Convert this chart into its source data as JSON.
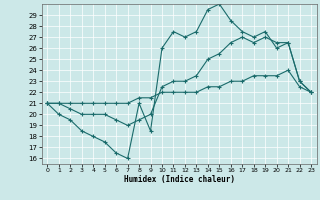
{
  "xlabel": "Humidex (Indice chaleur)",
  "bg_color": "#cce8e8",
  "line_color": "#1a6b6b",
  "xlim": [
    -0.5,
    23.5
  ],
  "ylim": [
    15.5,
    30.0
  ],
  "xticks": [
    0,
    1,
    2,
    3,
    4,
    5,
    6,
    7,
    8,
    9,
    10,
    11,
    12,
    13,
    14,
    15,
    16,
    17,
    18,
    19,
    20,
    21,
    22,
    23
  ],
  "yticks": [
    16,
    17,
    18,
    19,
    20,
    21,
    22,
    23,
    24,
    25,
    26,
    27,
    28,
    29
  ],
  "line1_x": [
    0,
    1,
    2,
    3,
    4,
    5,
    6,
    7,
    8,
    9,
    10,
    11,
    12,
    13,
    14,
    15,
    16,
    17,
    18,
    19,
    20,
    21,
    22,
    23
  ],
  "line1_y": [
    21,
    20,
    19.5,
    18.5,
    18,
    17.5,
    16.5,
    16,
    21,
    18.5,
    26,
    27.5,
    27,
    27.5,
    29.5,
    30,
    28.5,
    27.5,
    27,
    27.5,
    26,
    26.5,
    23,
    22
  ],
  "line2_x": [
    0,
    1,
    2,
    3,
    4,
    5,
    6,
    7,
    8,
    9,
    10,
    11,
    12,
    13,
    14,
    15,
    16,
    17,
    18,
    19,
    20,
    21,
    22,
    23
  ],
  "line2_y": [
    21,
    21,
    20.5,
    20,
    20,
    20,
    19.5,
    19,
    19.5,
    20,
    22.5,
    23,
    23,
    23.5,
    25,
    25.5,
    26.5,
    27,
    26.5,
    27,
    26.5,
    26.5,
    23,
    22
  ],
  "line3_x": [
    0,
    1,
    2,
    3,
    4,
    5,
    6,
    7,
    8,
    9,
    10,
    11,
    12,
    13,
    14,
    15,
    16,
    17,
    18,
    19,
    20,
    21,
    22,
    23
  ],
  "line3_y": [
    21,
    21,
    21,
    21,
    21,
    21,
    21,
    21,
    21.5,
    21.5,
    22,
    22,
    22,
    22,
    22.5,
    22.5,
    23,
    23,
    23.5,
    23.5,
    23.5,
    24,
    22.5,
    22
  ]
}
